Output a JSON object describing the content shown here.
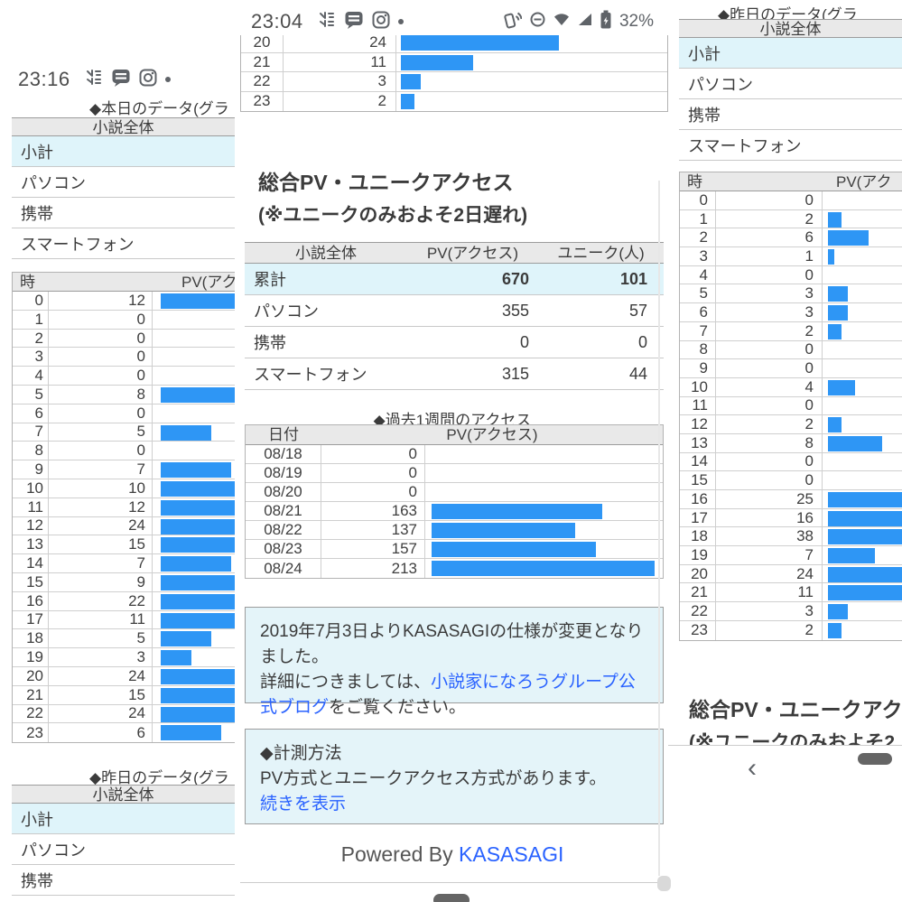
{
  "colors": {
    "bar_blue": "#2e96f5",
    "row_highlight": "#dff4fa",
    "header_bg": "#e9e9e9",
    "link_blue": "#2962ff",
    "notice_bg": "#e4f4f9"
  },
  "status_left": {
    "time": "23:16"
  },
  "status_mid": {
    "time": "23:04",
    "battery": "32%"
  },
  "icons": {
    "app_icons": [
      "piccoma-icon",
      "line-manga-icon",
      "instagram-icon",
      "notification-dot"
    ],
    "system_icons": [
      "nfc-icon",
      "do-not-disturb-icon",
      "wifi-icon",
      "cellular-icon",
      "battery-charging-icon"
    ]
  },
  "labels": {
    "today_heading": "◆本日のデータ(グラ",
    "yesterday_heading": "◆昨日のデータ(グラ",
    "novel_overall": "小説全体",
    "devices": [
      "小計",
      "パソコン",
      "携帯",
      "スマートフォン"
    ],
    "hour_col": "時",
    "pv_col_cut": "PV(アク",
    "pv_col": "PV(アクセス)",
    "unique_col": "ユニーク(人)",
    "date_col": "日付",
    "week_heading": "◆過去1週間のアクセス",
    "total_heading": "総合PV・ユニークアクセス",
    "total_note": "(※ユニークのみおよそ2日遅れ)",
    "total_heading_cut": "総合PV・ユニークアク",
    "total_note_cut": "(※ユニークのみおよそ2",
    "back_chevron": "‹"
  },
  "summary": {
    "rows": [
      {
        "label": "累計",
        "pv": "670",
        "unique": "101"
      },
      {
        "label": "パソコン",
        "pv": "355",
        "unique": "57"
      },
      {
        "label": "携帯",
        "pv": "0",
        "unique": "0"
      },
      {
        "label": "スマートフォン",
        "pv": "315",
        "unique": "44"
      }
    ]
  },
  "tables": {
    "today_hours": [
      [
        0,
        12
      ],
      [
        1,
        0
      ],
      [
        2,
        0
      ],
      [
        3,
        0
      ],
      [
        4,
        0
      ],
      [
        5,
        8
      ],
      [
        6,
        0
      ],
      [
        7,
        5
      ],
      [
        8,
        0
      ],
      [
        9,
        7
      ],
      [
        10,
        10
      ],
      [
        11,
        12
      ],
      [
        12,
        24
      ],
      [
        13,
        15
      ],
      [
        14,
        7
      ],
      [
        15,
        9
      ],
      [
        16,
        22
      ],
      [
        17,
        11
      ],
      [
        18,
        5
      ],
      [
        19,
        3
      ],
      [
        20,
        24
      ],
      [
        21,
        15
      ],
      [
        22,
        24
      ],
      [
        23,
        6
      ]
    ],
    "yesterday_hours_partial": [
      [
        20,
        24
      ],
      [
        21,
        11
      ],
      [
        22,
        3
      ],
      [
        23,
        2
      ]
    ],
    "yesterday_hours": [
      [
        0,
        0
      ],
      [
        1,
        2
      ],
      [
        2,
        6
      ],
      [
        3,
        1
      ],
      [
        4,
        0
      ],
      [
        5,
        3
      ],
      [
        6,
        3
      ],
      [
        7,
        2
      ],
      [
        8,
        0
      ],
      [
        9,
        0
      ],
      [
        10,
        4
      ],
      [
        11,
        0
      ],
      [
        12,
        2
      ],
      [
        13,
        8
      ],
      [
        14,
        0
      ],
      [
        15,
        0
      ],
      [
        16,
        25
      ],
      [
        17,
        16
      ],
      [
        18,
        38
      ],
      [
        19,
        7
      ],
      [
        20,
        24
      ],
      [
        21,
        11
      ],
      [
        22,
        3
      ],
      [
        23,
        2
      ]
    ],
    "week": [
      [
        "08/18",
        0
      ],
      [
        "08/19",
        0
      ],
      [
        "08/20",
        0
      ],
      [
        "08/21",
        163
      ],
      [
        "08/22",
        137
      ],
      [
        "08/23",
        157
      ],
      [
        "08/24",
        213
      ]
    ]
  },
  "notice1": {
    "line1": "2019年7月3日よりKASASAGIの仕様が変更となりました。",
    "line2_pre": "詳細につきましては、",
    "line2_link": "小説家になろうグループ公式ブログ",
    "line2_post": "をご覧ください。"
  },
  "notice2": {
    "title": "◆計測方法",
    "body": "PV方式とユニークアクセス方式があります。",
    "link": "続きを表示"
  },
  "footer": {
    "powered_pre": "Powered By ",
    "powered_link": "KASASAGI"
  }
}
